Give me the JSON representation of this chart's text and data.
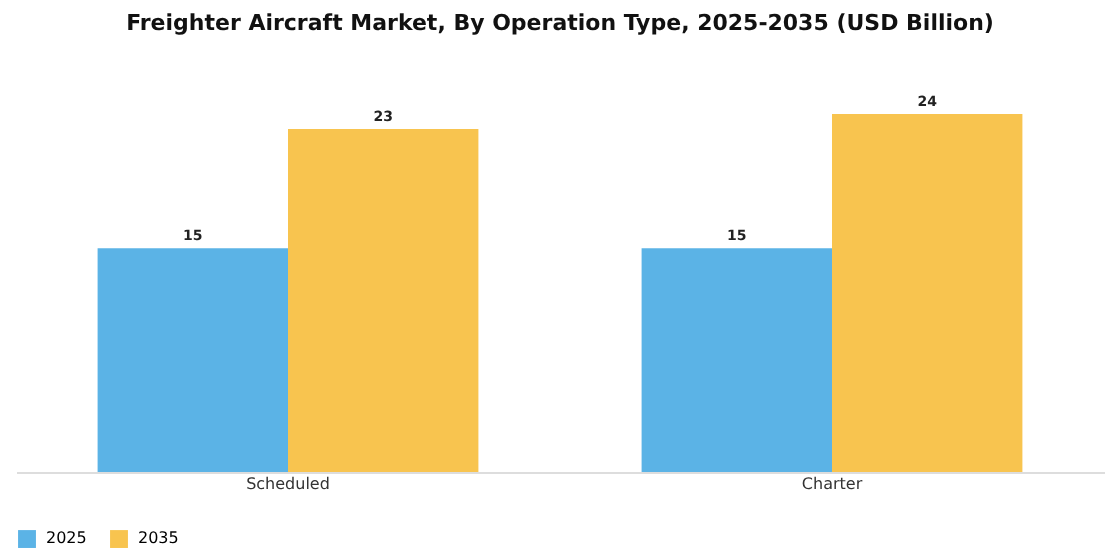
{
  "chart_data": {
    "type": "bar",
    "title": "Freighter Aircraft Market, By Operation Type, 2025-2035 (USD Billion)",
    "categories": [
      "Scheduled",
      "Charter"
    ],
    "series": [
      {
        "name": "2025",
        "color": "#5bb3e6",
        "values": [
          15,
          15
        ]
      },
      {
        "name": "2035",
        "color": "#f8c44f",
        "values": [
          23,
          24
        ]
      }
    ],
    "data_labels": true,
    "legend": "bottom"
  }
}
